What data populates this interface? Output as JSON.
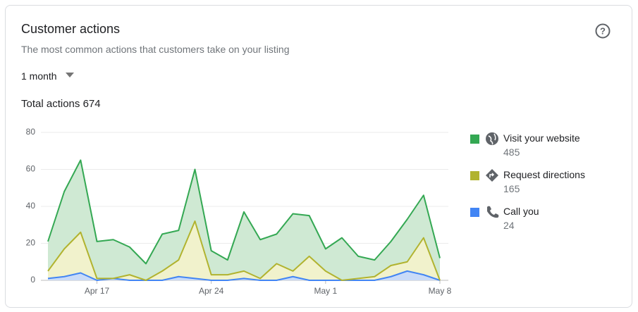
{
  "header": {
    "title": "Customer actions",
    "subtitle": "The most common actions that customers take on your listing",
    "period": "1 month"
  },
  "chart_data": {
    "type": "stacked_area",
    "total_label": "Total actions",
    "total": 674,
    "categories": [
      null,
      null,
      null,
      "Apr 17",
      null,
      null,
      null,
      null,
      null,
      null,
      "Apr 24",
      null,
      null,
      null,
      null,
      null,
      null,
      "May 1",
      null,
      null,
      null,
      null,
      null,
      null,
      "May 8"
    ],
    "series": [
      {
        "name": "Visit your website",
        "total": 485,
        "color": "#34a853",
        "fill": "#cfe9d3",
        "values": [
          16,
          31,
          39,
          20,
          21,
          15,
          9,
          20,
          16,
          28,
          13,
          8,
          32,
          21,
          16,
          31,
          22,
          12,
          23,
          12,
          9,
          13,
          23,
          23,
          12
        ]
      },
      {
        "name": "Request directions",
        "total": 165,
        "color": "#b1b32f",
        "fill": "#f1f2cc",
        "values": [
          4,
          15,
          22,
          1,
          0,
          3,
          0,
          5,
          9,
          31,
          3,
          3,
          4,
          1,
          9,
          3,
          13,
          5,
          0,
          1,
          2,
          6,
          5,
          20,
          0
        ]
      },
      {
        "name": "Call you",
        "total": 24,
        "color": "#4285f4",
        "fill": "#c9dbf8",
        "values": [
          1,
          2,
          4,
          0,
          1,
          0,
          0,
          0,
          2,
          1,
          0,
          0,
          1,
          0,
          0,
          2,
          0,
          0,
          0,
          0,
          0,
          2,
          5,
          3,
          0
        ]
      }
    ],
    "ylim": [
      0,
      80
    ],
    "yticks": [
      0,
      20,
      40,
      60,
      80
    ],
    "grid": true
  }
}
